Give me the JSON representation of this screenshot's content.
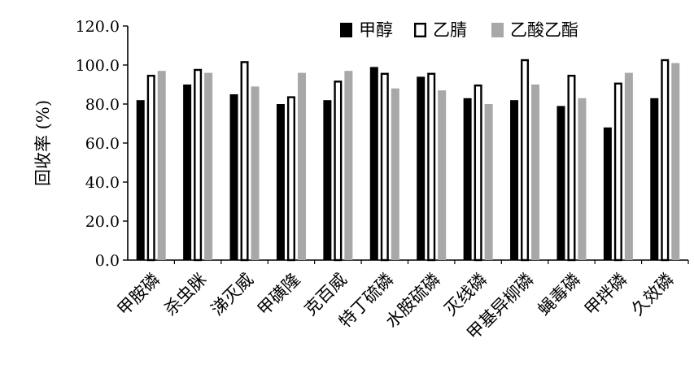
{
  "chart_data": {
    "type": "bar",
    "title": "",
    "xlabel": "",
    "ylabel": "回收率 (%)",
    "ylim": [
      0,
      120
    ],
    "yticks": [
      "0.0",
      "20.0",
      "40.0",
      "60.0",
      "80.0",
      "100.0",
      "120.0"
    ],
    "legend_position": "top-right",
    "grid": false,
    "categories": [
      "甲胺磷",
      "杀虫脒",
      "涕灭威",
      "甲磺隆",
      "克百威",
      "特丁硫磷",
      "水胺硫磷",
      "灭线磷",
      "甲基异柳磷",
      "蝇毒磷",
      "甲拌磷",
      "久效磷"
    ],
    "series": [
      {
        "name": "甲醇",
        "color": "#000000",
        "style": "solid",
        "values": [
          82,
          90,
          85,
          80,
          82,
          99,
          94,
          83,
          82,
          79,
          68,
          83
        ]
      },
      {
        "name": "乙腈",
        "color": "#ffffff",
        "style": "hollow",
        "values": [
          95,
          98,
          102,
          84,
          92,
          96,
          96,
          90,
          103,
          95,
          91,
          103
        ]
      },
      {
        "name": "乙酸乙酯",
        "color": "#a8a8a8",
        "style": "solid",
        "values": [
          97,
          96,
          89,
          96,
          97,
          88,
          87,
          80,
          90,
          83,
          96,
          101
        ]
      }
    ]
  }
}
